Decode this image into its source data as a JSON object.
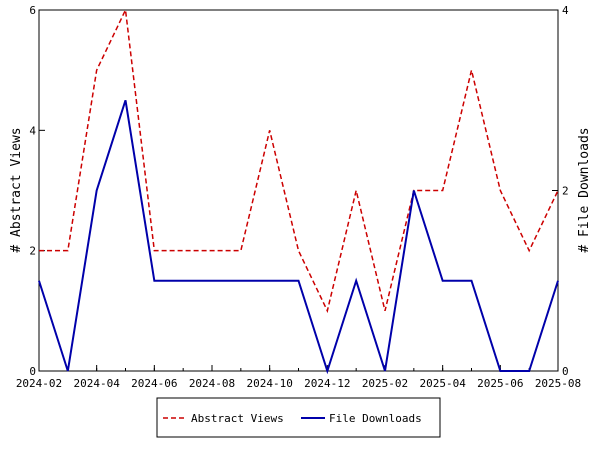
{
  "chart_data": {
    "type": "line",
    "x": [
      "2024-02",
      "2024-03",
      "2024-04",
      "2024-05",
      "2024-06",
      "2024-07",
      "2024-08",
      "2024-09",
      "2024-10",
      "2024-11",
      "2024-12",
      "2025-01",
      "2025-02",
      "2025-03",
      "2025-04",
      "2025-05",
      "2025-06",
      "2025-07",
      "2025-08"
    ],
    "xticks": [
      "2024-02",
      "2024-04",
      "2024-06",
      "2024-08",
      "2024-10",
      "2024-12",
      "2025-02",
      "2025-04",
      "2025-06",
      "2025-08"
    ],
    "y_label": "# Abstract Views",
    "y2_label": "# File Downloads",
    "ylim": [
      0,
      6
    ],
    "yticks": [
      0,
      2,
      4,
      6
    ],
    "y2lim": [
      0,
      4
    ],
    "y2ticks": [
      0,
      2,
      4
    ],
    "series": [
      {
        "name": "Abstract Views",
        "color": "#cc0000",
        "dash": true,
        "values": [
          2,
          2,
          5,
          6,
          2,
          2,
          2,
          2,
          4,
          2,
          1,
          3,
          1,
          3,
          3,
          5,
          3,
          2,
          3
        ]
      },
      {
        "name": "File Downloads",
        "color": "#0000aa",
        "axis": "y2",
        "values": [
          1,
          0,
          2,
          3,
          1,
          1,
          1,
          1,
          1,
          1,
          0,
          1,
          0,
          2,
          1,
          1,
          0,
          0,
          1
        ]
      }
    ]
  }
}
